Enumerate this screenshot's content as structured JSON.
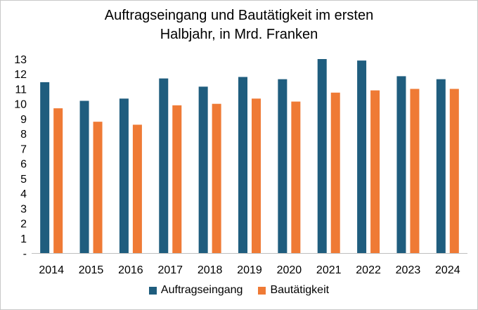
{
  "chart_data": {
    "type": "bar",
    "title_lines": [
      "Auftragseingang und Bautätigkeit im ersten",
      "Halbjahr, in Mrd. Franken"
    ],
    "xlabel": "",
    "ylabel": "",
    "ylim": [
      0,
      13
    ],
    "y_ticks": [
      "-",
      "1",
      "2",
      "3",
      "4",
      "5",
      "6",
      "7",
      "8",
      "9",
      "10",
      "11",
      "12",
      "13"
    ],
    "grid": false,
    "legend_position": "bottom",
    "categories": [
      "2014",
      "2015",
      "2016",
      "2017",
      "2018",
      "2019",
      "2020",
      "2021",
      "2022",
      "2023",
      "2024"
    ],
    "series": [
      {
        "name": "Auftragseingang",
        "color": "#1f5d7e",
        "values": [
          11.45,
          10.2,
          10.35,
          11.7,
          11.15,
          11.8,
          11.65,
          13.0,
          12.9,
          11.85,
          11.65
        ]
      },
      {
        "name": "Bautätigkeit",
        "color": "#ef7a35",
        "values": [
          9.7,
          8.8,
          8.6,
          9.9,
          10.0,
          10.35,
          10.15,
          10.75,
          10.9,
          11.0,
          11.0
        ]
      }
    ]
  }
}
